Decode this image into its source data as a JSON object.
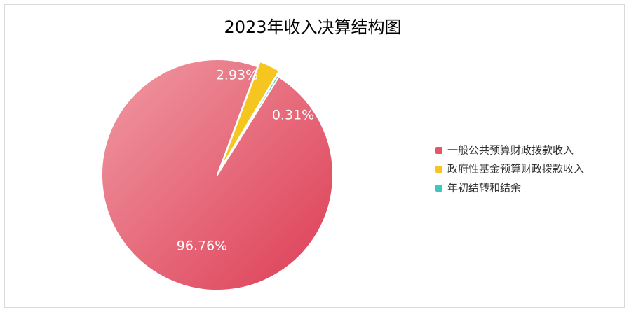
{
  "chart_data": {
    "type": "pie",
    "title": "2023年收入决算结构图",
    "categories": [
      "一般公共预算财政拨款收入",
      "政府性基金预算财政拨款收入",
      "年初结转和结余"
    ],
    "values": [
      96.76,
      2.93,
      0.31
    ],
    "value_labels": [
      "96.76%",
      "2.93%",
      "0.31%"
    ],
    "colors": [
      "#e5566a",
      "#f4c61f",
      "#3ec7c0"
    ],
    "legend": "right"
  }
}
